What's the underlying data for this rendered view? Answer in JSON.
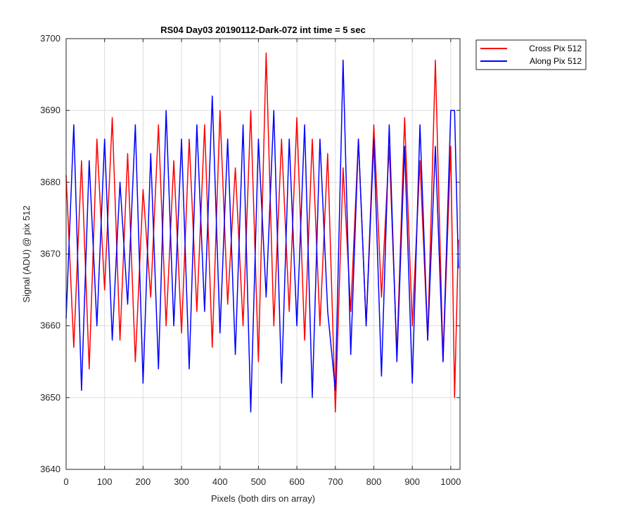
{
  "chart_data": {
    "type": "line",
    "title": "RS04 Day03 20190112-Dark-072 int time = 5 sec",
    "xlabel": "Pixels (both dirs on array)",
    "ylabel": "Signal (ADU) @ pix 512",
    "xlim": [
      0,
      1024
    ],
    "ylim": [
      3640,
      3700
    ],
    "xticks": [
      0,
      100,
      200,
      300,
      400,
      500,
      600,
      700,
      800,
      900,
      1000
    ],
    "yticks": [
      3640,
      3650,
      3660,
      3670,
      3680,
      3690,
      3700
    ],
    "grid": true,
    "legend_position": "outside-top-right",
    "series": [
      {
        "name": "Cross Pix 512",
        "color": "#ff0000",
        "x": [
          0,
          20,
          40,
          60,
          80,
          100,
          120,
          140,
          160,
          180,
          200,
          220,
          240,
          260,
          280,
          300,
          320,
          340,
          360,
          380,
          400,
          420,
          440,
          460,
          480,
          500,
          520,
          540,
          560,
          580,
          600,
          620,
          640,
          660,
          680,
          700,
          720,
          740,
          760,
          780,
          800,
          820,
          840,
          860,
          880,
          900,
          920,
          940,
          960,
          980,
          1000,
          1010,
          1020
        ],
        "y": [
          3681,
          3657,
          3683,
          3654,
          3686,
          3665,
          3689,
          3658,
          3684,
          3655,
          3679,
          3664,
          3688,
          3660,
          3683,
          3659,
          3686,
          3662,
          3688,
          3657,
          3690,
          3663,
          3682,
          3660,
          3690,
          3655,
          3698,
          3660,
          3686,
          3662,
          3689,
          3658,
          3686,
          3660,
          3684,
          3648,
          3682,
          3662,
          3686,
          3660,
          3688,
          3664,
          3685,
          3656,
          3689,
          3660,
          3683,
          3658,
          3697,
          3655,
          3685,
          3650,
          3672
        ]
      },
      {
        "name": "Along Pix 512",
        "color": "#0000ff",
        "x": [
          0,
          20,
          40,
          60,
          80,
          100,
          120,
          140,
          160,
          180,
          200,
          220,
          240,
          260,
          280,
          300,
          320,
          340,
          360,
          380,
          400,
          420,
          440,
          460,
          480,
          500,
          520,
          540,
          560,
          580,
          600,
          620,
          640,
          660,
          680,
          700,
          720,
          740,
          760,
          780,
          800,
          820,
          840,
          860,
          880,
          900,
          920,
          940,
          960,
          980,
          1000,
          1010,
          1020
        ],
        "y": [
          3661,
          3688,
          3651,
          3683,
          3660,
          3686,
          3658,
          3680,
          3663,
          3688,
          3652,
          3684,
          3654,
          3690,
          3660,
          3686,
          3654,
          3688,
          3662,
          3692,
          3659,
          3686,
          3656,
          3688,
          3648,
          3686,
          3664,
          3690,
          3652,
          3686,
          3660,
          3688,
          3650,
          3686,
          3662,
          3651,
          3697,
          3656,
          3686,
          3660,
          3686,
          3653,
          3688,
          3655,
          3685,
          3652,
          3688,
          3658,
          3685,
          3655,
          3690,
          3690,
          3668
        ]
      }
    ]
  }
}
